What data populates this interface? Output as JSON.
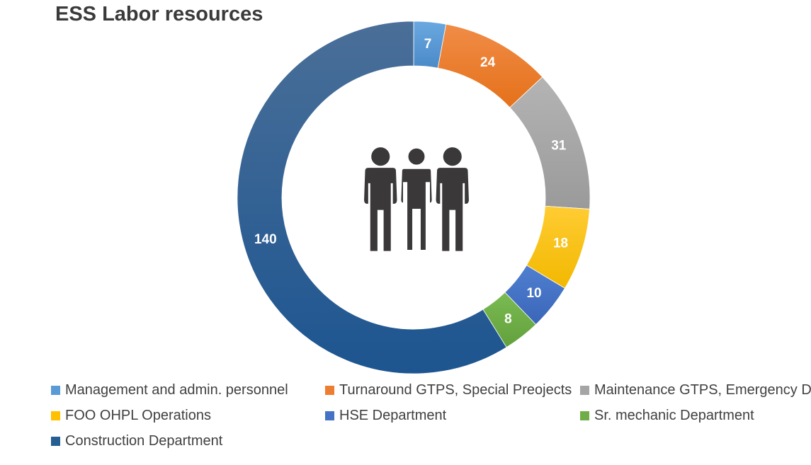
{
  "chart_data": {
    "type": "pie",
    "title": "ESS Labor resources",
    "categories": [
      "Management and admin. personnel",
      "Turnaround GTPS, Special Preojects",
      "Maintenance GTPS, Emergency D",
      "FOO OHPL Operations",
      "HSE Department",
      "Sr. mechanic Department",
      "Construction Department"
    ],
    "values": [
      7,
      24,
      31,
      18,
      10,
      8,
      140
    ],
    "colors": [
      "#5b9bd5",
      "#ed7d31",
      "#a5a5a5",
      "#ffc000",
      "#4472c4",
      "#70ad47",
      "#255e91"
    ],
    "donut": true,
    "legend_position": "bottom",
    "center_icon": "people-group-icon"
  }
}
